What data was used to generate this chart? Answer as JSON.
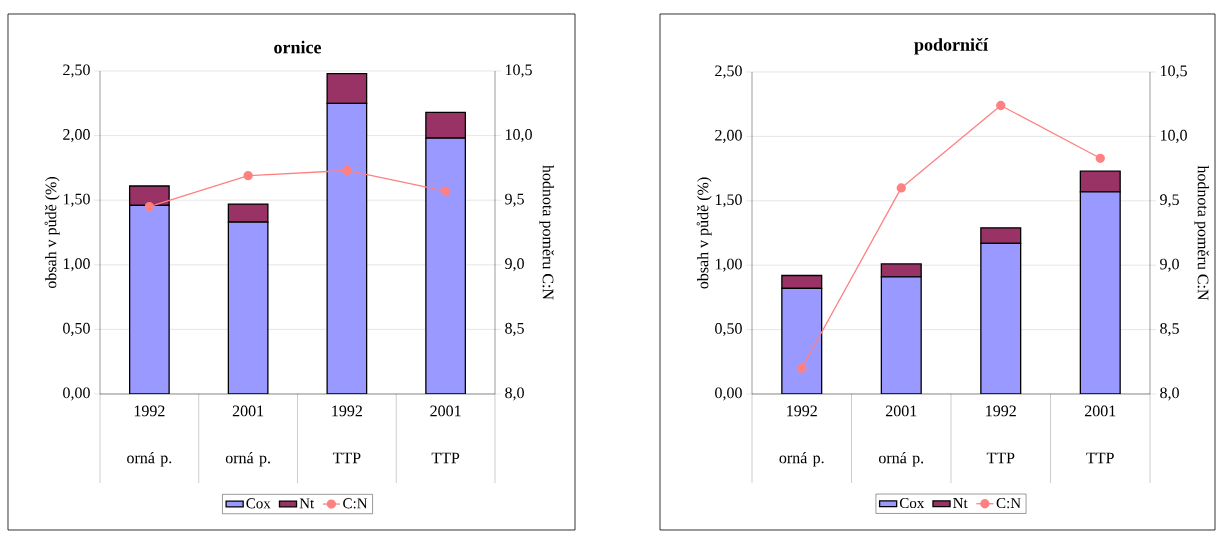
{
  "chart_data": [
    {
      "type": "bar",
      "title": "ornice",
      "ylabel": "obsah v půdě (%)",
      "y2label": "hodnota poměru C:N",
      "categories": [
        "1992 orná p.",
        "2001 orná p.",
        "1992 TTP",
        "2001 TTP"
      ],
      "stacked": true,
      "series": [
        {
          "name": "Cox",
          "color": "#9999ff",
          "values": [
            1.46,
            1.33,
            2.25,
            1.98
          ]
        },
        {
          "name": "Nt",
          "color": "#993366",
          "values": [
            0.15,
            0.14,
            0.23,
            0.2
          ]
        },
        {
          "name": "C:N",
          "type": "line",
          "axis": "y2",
          "color": "#ff8080",
          "values": [
            9.45,
            9.69,
            9.73,
            9.57
          ]
        }
      ],
      "ylim": [
        0,
        2.5
      ],
      "yticks": [
        {
          "value": 0,
          "label": "0,00"
        },
        {
          "value": 0.5,
          "label": "0,50"
        },
        {
          "value": 1,
          "label": "1,00"
        },
        {
          "value": 1.5,
          "label": "1,50"
        },
        {
          "value": 2,
          "label": "2,00"
        },
        {
          "value": 2.5,
          "label": "2,50"
        }
      ],
      "y2lim": [
        8,
        10.5
      ],
      "y2ticks": [
        {
          "value": 8,
          "label": "8,0"
        },
        {
          "value": 8.5,
          "label": "8,5"
        },
        {
          "value": 9,
          "label": "9,0"
        },
        {
          "value": 9.5,
          "label": "9,5"
        },
        {
          "value": 10,
          "label": "10,0"
        },
        {
          "value": 10.5,
          "label": "10,5"
        }
      ],
      "grid": "y",
      "legend": "bottom",
      "marker": "circle",
      "line_style": "solid"
    },
    {
      "type": "bar",
      "title": "podorničí",
      "ylabel": "obsah v půdě (%)",
      "y2label": "hodnota poměru C:N",
      "categories": [
        "1992 orná p.",
        "2001 orná p.",
        "1992 TTP",
        "2001 TTP"
      ],
      "stacked": true,
      "series": [
        {
          "name": "Cox",
          "color": "#9999ff",
          "values": [
            0.82,
            0.91,
            1.17,
            1.57
          ]
        },
        {
          "name": "Nt",
          "color": "#993366",
          "values": [
            0.1,
            0.1,
            0.12,
            0.16
          ]
        },
        {
          "name": "C:N",
          "type": "line",
          "axis": "y2",
          "color": "#ff8080",
          "values": [
            8.2,
            9.6,
            10.24,
            9.83
          ]
        }
      ],
      "ylim": [
        0,
        2.5
      ],
      "yticks": [
        {
          "value": 0,
          "label": "0,00"
        },
        {
          "value": 0.5,
          "label": "0,50"
        },
        {
          "value": 1,
          "label": "1,00"
        },
        {
          "value": 1.5,
          "label": "1,50"
        },
        {
          "value": 2,
          "label": "2,00"
        },
        {
          "value": 2.5,
          "label": "2,50"
        }
      ],
      "y2lim": [
        8,
        10.5
      ],
      "y2ticks": [
        {
          "value": 8,
          "label": "8,0"
        },
        {
          "value": 8.5,
          "label": "8,5"
        },
        {
          "value": 9,
          "label": "9,0"
        },
        {
          "value": 9.5,
          "label": "9,5"
        },
        {
          "value": 10,
          "label": "10,0"
        },
        {
          "value": 10.5,
          "label": "10,5"
        }
      ],
      "grid": "y",
      "legend": "bottom",
      "marker": "circle",
      "line_style": "solid"
    }
  ]
}
